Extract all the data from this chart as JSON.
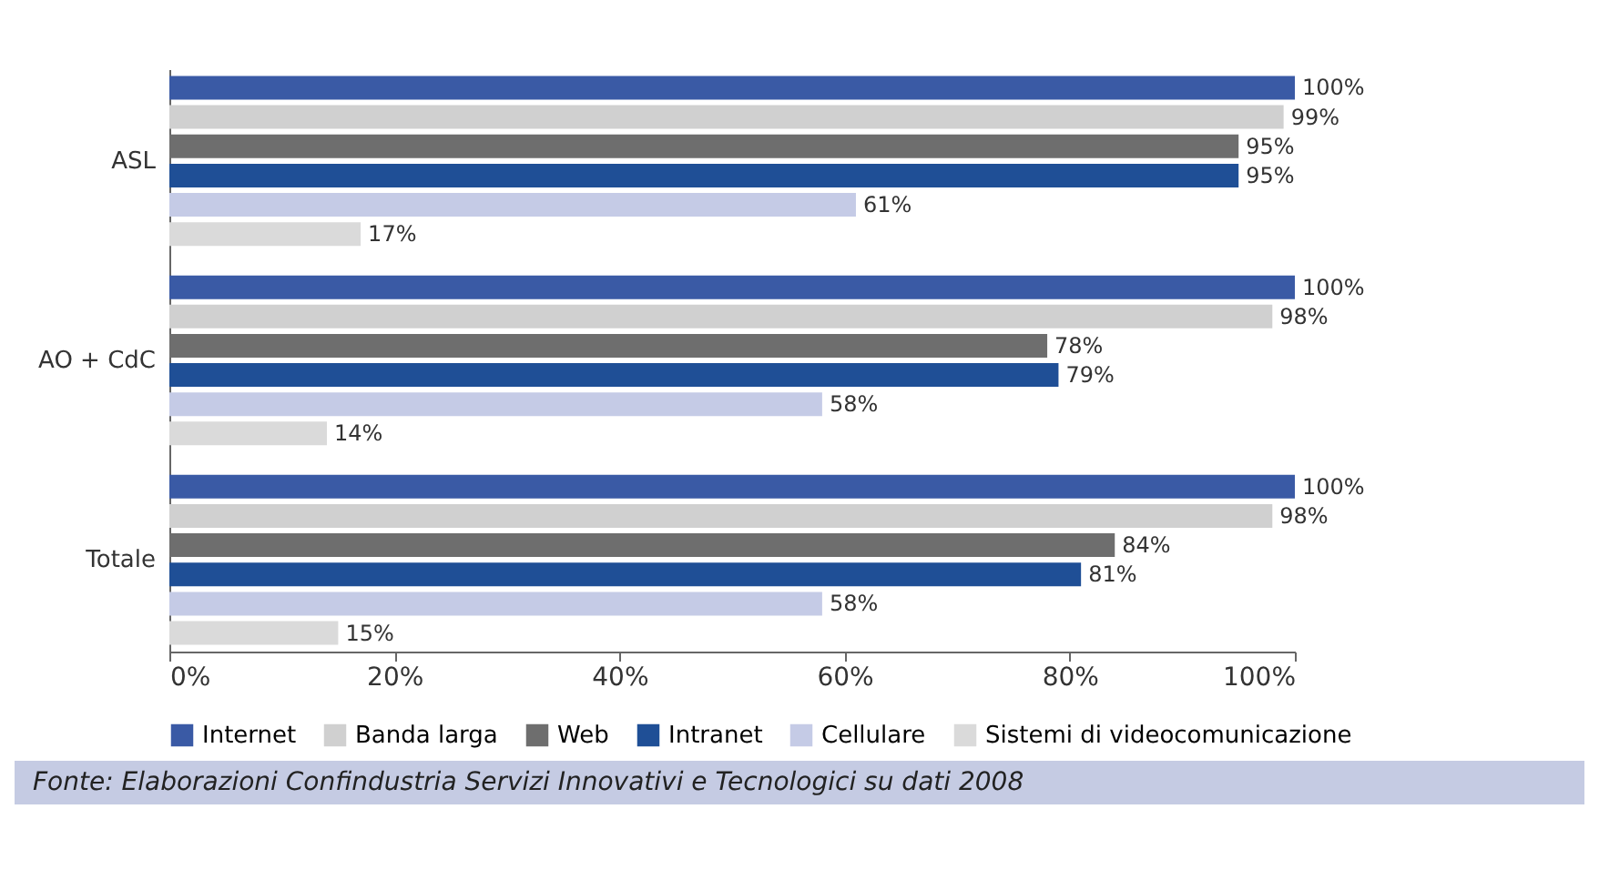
{
  "chart_data": {
    "type": "bar",
    "orientation": "horizontal",
    "categories": [
      "ASL",
      "AO + CdC",
      "Totale"
    ],
    "series": [
      {
        "name": "Internet",
        "color": "#3a5aa5",
        "values": [
          100,
          100,
          100
        ],
        "value_labels": [
          "100%",
          "100%",
          "100%"
        ]
      },
      {
        "name": "Banda larga",
        "color": "#d0d0d0",
        "values": [
          99,
          98,
          98
        ],
        "value_labels": [
          "99%",
          "98%",
          "98%"
        ]
      },
      {
        "name": "Web",
        "color": "#6e6e6e",
        "values": [
          95,
          78,
          84
        ],
        "value_labels": [
          "95%",
          "78%",
          "84%"
        ]
      },
      {
        "name": "Intranet",
        "color": "#1f4f96",
        "values": [
          95,
          79,
          81
        ],
        "value_labels": [
          "95%",
          "79%",
          "81%"
        ]
      },
      {
        "name": "Cellulare",
        "color": "#c5cbe6",
        "values": [
          61,
          58,
          58
        ],
        "value_labels": [
          "61%",
          "58%",
          "58%"
        ]
      },
      {
        "name": "Sistemi di videocomunicazione",
        "color": "#dadada",
        "values": [
          17,
          14,
          15
        ],
        "value_labels": [
          "17%",
          "14%",
          "15%"
        ]
      }
    ],
    "xlim": [
      0,
      100
    ],
    "xticks": [
      {
        "value": 0,
        "label": "0%"
      },
      {
        "value": 20,
        "label": "20%"
      },
      {
        "value": 40,
        "label": "40%"
      },
      {
        "value": 60,
        "label": "60%"
      },
      {
        "value": 80,
        "label": "80%"
      },
      {
        "value": 100,
        "label": "100%"
      }
    ],
    "grid": false,
    "legend": "bottom",
    "annotations": [
      "Fonte: Elaborazioni Confindustria Servizi Innovativi e Tecnologici su dati 2008"
    ]
  }
}
